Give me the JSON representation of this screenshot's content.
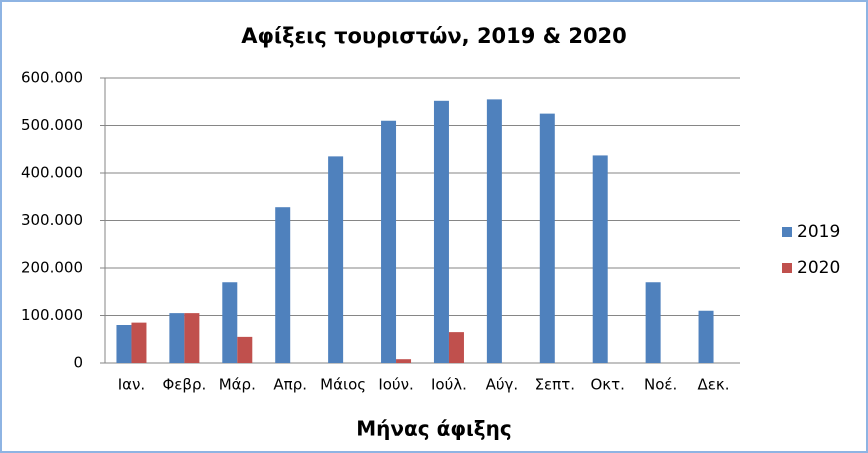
{
  "chart_data": {
    "type": "bar",
    "title": "Αφίξεις τουριστών, 2019 & 2020",
    "x_label": "Μήνας άφιξης",
    "categories": [
      "Ιαν.",
      "Φεβρ.",
      "Μάρ.",
      "Απρ.",
      "Μάιος",
      "Ιούν.",
      "Ιούλ.",
      "Αύγ.",
      "Σεπτ.",
      "Οκτ.",
      "Νοέ.",
      "Δεκ."
    ],
    "series": [
      {
        "name": "2019",
        "color": "#4f81bd",
        "values": [
          80000,
          105000,
          170000,
          328000,
          435000,
          510000,
          552000,
          555000,
          525000,
          437000,
          170000,
          110000
        ]
      },
      {
        "name": "2020",
        "color": "#c0504d",
        "values": [
          85000,
          105000,
          55000,
          0,
          0,
          8000,
          65000,
          null,
          null,
          null,
          null,
          null
        ]
      }
    ],
    "ylim": [
      0,
      600000
    ],
    "yticks": [
      0,
      {
        "value": 100000,
        "label": "100.000"
      },
      {
        "value": 200000,
        "label": "200.000"
      },
      {
        "value": 300000,
        "label": "300.000"
      },
      {
        "value": 400000,
        "label": "400.000"
      },
      {
        "value": 500000,
        "label": "500.000"
      },
      {
        "value": 600000,
        "label": "600.000"
      }
    ],
    "grid": true,
    "legend": "right"
  }
}
